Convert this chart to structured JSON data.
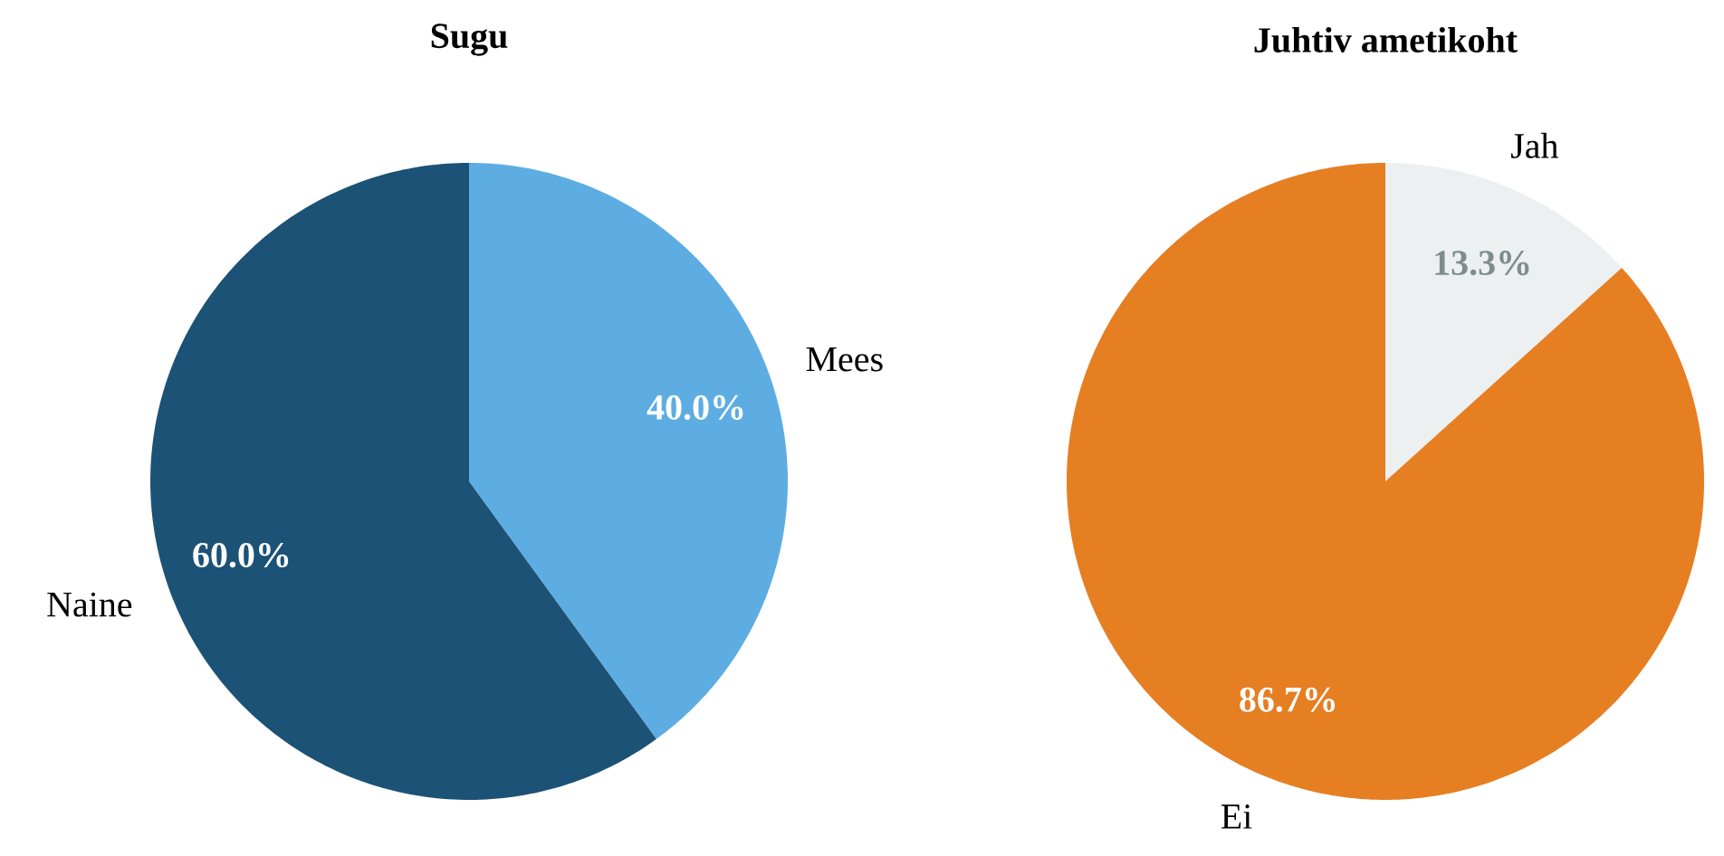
{
  "chart_data": [
    {
      "type": "pie",
      "title": "Sugu",
      "categories": [
        "Mees",
        "Naine"
      ],
      "values": [
        40.0,
        60.0
      ],
      "colors": [
        "#5dade2",
        "#1b5276"
      ],
      "value_labels": [
        "40.0%",
        "60.0%"
      ]
    },
    {
      "type": "pie",
      "title": "Juhtiv ametikoht",
      "categories": [
        "Jah",
        "Ei"
      ],
      "values": [
        13.3,
        86.7
      ],
      "colors": [
        "#ecf0f1",
        "#e67e22"
      ],
      "value_labels": [
        "13.3%",
        "86.7%"
      ]
    }
  ]
}
